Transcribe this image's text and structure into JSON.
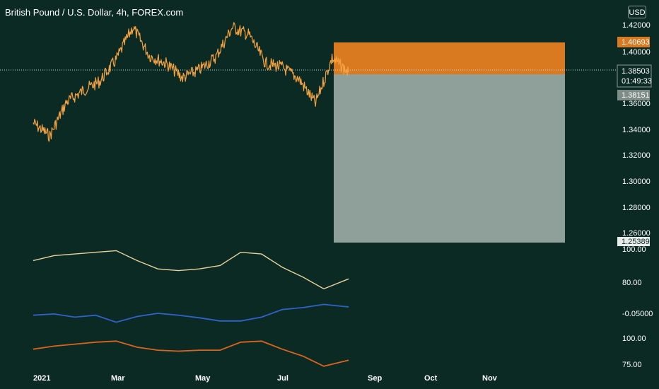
{
  "title": "British Pound / U.S. Dollar, 4h, FOREX.com",
  "currency_button": "USD",
  "colors": {
    "background": "#0c2a24",
    "price_line": "#f5a340",
    "target_zone": "#d97a20",
    "stop_zone": "#8f9f99",
    "line_cream": "#e6d49a",
    "line_blue": "#2f63c9",
    "line_orange": "#d9641f"
  },
  "price_labels": {
    "target": "1.40693",
    "current": "1.38503",
    "countdown": "01:49:33",
    "entry": "1.38151",
    "stop": "1.25389"
  },
  "pane_labels": {
    "osc1": "100.00",
    "osc1b": "80.00",
    "osc2": "-0.05000",
    "osc3": "100.00",
    "osc3b": "75.00"
  },
  "chart_data": [
    {
      "type": "line",
      "title": "British Pound / U.S. Dollar, 4h, FOREX.com",
      "xlabel": "",
      "ylabel": "USD",
      "x_ticks": [
        "2021",
        "Mar",
        "May",
        "Jul",
        "Sep",
        "Oct",
        "Nov"
      ],
      "y_ticks": [
        "1.42000",
        "1.40000",
        "1.36000",
        "1.34000",
        "1.32000",
        "1.30000",
        "1.28000",
        "1.26000"
      ],
      "ylim": [
        1.255,
        1.425
      ],
      "x_months": [
        0,
        0.4,
        0.8,
        1.2,
        1.6,
        2.0,
        2.4,
        2.8,
        3.2,
        3.6,
        4.0,
        4.4,
        4.8,
        5.2,
        5.6,
        6.0,
        6.4,
        6.8,
        7.2,
        7.6
      ],
      "series": [
        {
          "values": [
            1.346,
            1.336,
            1.362,
            1.371,
            1.378,
            1.395,
            1.42,
            1.398,
            1.392,
            1.381,
            1.387,
            1.397,
            1.42,
            1.414,
            1.392,
            1.389,
            1.38,
            1.361,
            1.396,
            1.385
          ]
        }
      ],
      "position": {
        "entry": 1.38151,
        "target": 1.40693,
        "stop": 1.25389,
        "current": 1.38503
      },
      "grid": false,
      "legend": "none"
    },
    {
      "type": "line",
      "y_ticks": [
        "100.00",
        "80.00"
      ],
      "x_months": [
        0,
        0.5,
        1.0,
        1.5,
        2.0,
        2.5,
        3.0,
        3.5,
        4.0,
        4.5,
        5.0,
        5.5,
        6.0,
        6.5,
        7.0,
        7.6
      ],
      "series": [
        {
          "values": [
            93,
            96,
            97,
            98,
            99,
            93,
            88,
            87,
            88,
            90,
            98,
            97,
            89,
            83,
            76,
            82
          ]
        }
      ]
    },
    {
      "type": "line",
      "y_ticks": [
        "-0.05000"
      ],
      "x_months": [
        0,
        0.5,
        1.0,
        1.5,
        2.0,
        2.5,
        3.0,
        3.5,
        4.0,
        4.5,
        5.0,
        5.5,
        6.0,
        6.5,
        7.0,
        7.6
      ],
      "series": [
        {
          "values": [
            -0.053,
            -0.051,
            -0.056,
            -0.053,
            -0.064,
            -0.055,
            -0.05,
            -0.053,
            -0.057,
            -0.062,
            -0.062,
            -0.056,
            -0.044,
            -0.041,
            -0.036,
            -0.04
          ]
        }
      ]
    },
    {
      "type": "line",
      "y_ticks": [
        "100.00",
        "75.00"
      ],
      "x_months": [
        0,
        0.5,
        1.0,
        1.5,
        2.0,
        2.5,
        3.0,
        3.5,
        4.0,
        4.5,
        5.0,
        5.5,
        6.0,
        6.5,
        7.0,
        7.6
      ],
      "series": [
        {
          "values": [
            90,
            93,
            95,
            97,
            98,
            92,
            89,
            88,
            89,
            89,
            97,
            98,
            90,
            83,
            73,
            79
          ]
        }
      ]
    }
  ]
}
